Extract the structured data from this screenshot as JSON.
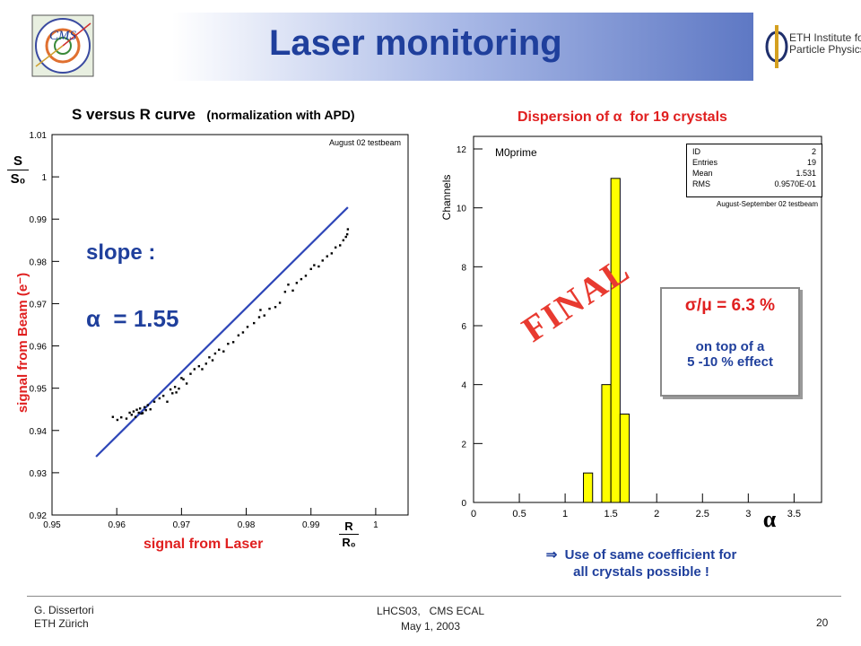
{
  "header": {
    "title": "Laser monitoring",
    "cms_logo_text": "CMS",
    "eth_logo_text_line1": "ETH Institute for",
    "eth_logo_text_line2": "Particle Physics"
  },
  "left_panel": {
    "plot_title": "S versus R curve",
    "plot_subtitle": "(normalization with APD)",
    "testbeam_note": "August 02 testbeam",
    "y_axis_num": "S",
    "y_axis_den": "S₀",
    "x_axis_num": "R",
    "x_axis_den": "R₀",
    "y_label": "signal from Beam (e⁻)",
    "x_label": "signal from Laser",
    "slope_label": "slope :",
    "alpha_label": "α  = 1.55",
    "y_ticks": [
      "1.01",
      "1",
      "0.99",
      "0.98",
      "0.97",
      "0.96",
      "0.95",
      "0.94",
      "0.93",
      "0.92"
    ],
    "x_ticks": [
      "0.95",
      "0.96",
      "0.97",
      "0.98",
      "0.99",
      "1"
    ]
  },
  "right_panel": {
    "heading": "Dispersion of α  for 19 crystals",
    "hist_name": "M0prime",
    "y_axis_label": "Channels",
    "x_axis_label": "α",
    "testbeam_note": "August-September 02 testbeam",
    "stamp": "FINAL",
    "stats": [
      {
        "key": "ID",
        "value": "2"
      },
      {
        "key": "Entries",
        "value": "19"
      },
      {
        "key": "Mean",
        "value": "1.531"
      },
      {
        "key": "RMS",
        "value": "0.9570E-01"
      }
    ],
    "y_ticks": [
      "12",
      "10",
      "8",
      "6",
      "4",
      "2",
      "0"
    ],
    "x_ticks": [
      "0",
      "0.5",
      "1",
      "1.5",
      "2",
      "2.5",
      "3",
      "3.5"
    ],
    "result_title": "σ/μ = 6.3 %",
    "result_line1": "on top of a",
    "result_line2": "5 -10 % effect",
    "conclusion_line1": "⇒  Use of same coefficient for",
    "conclusion_line2": "all crystals possible !"
  },
  "footer": {
    "author": "G. Dissertori",
    "institution": "ETH Zürich",
    "event": "LHCS03,   CMS ECAL",
    "date": "May 1, 2003",
    "page_number": "20"
  },
  "chart_data": [
    {
      "type": "scatter",
      "title": "S versus R curve",
      "subtitle": "(normalization with APD)",
      "xlabel": "R/R0",
      "ylabel": "S/S0",
      "xlim": [
        0.95,
        1.005
      ],
      "ylim": [
        0.92,
        1.01
      ],
      "x_ticks": [
        0.95,
        0.96,
        0.97,
        0.98,
        0.99,
        1
      ],
      "y_ticks": [
        0.92,
        0.93,
        0.94,
        0.95,
        0.96,
        0.97,
        0.98,
        0.99,
        1,
        1.01
      ],
      "fit_line": {
        "x": [
          0.9568,
          0.9957
        ],
        "y": [
          0.9338,
          0.9928
        ]
      },
      "series": [
        {
          "x": [
            0.9594,
            0.9601,
            0.9607,
            0.9615,
            0.962,
            0.9623,
            0.9626,
            0.9629,
            0.9631,
            0.9634,
            0.9636,
            0.9638,
            0.964,
            0.9643,
            0.9645,
            0.9648,
            0.9652,
            0.9658,
            0.9666,
            0.9672,
            0.9678,
            0.9683,
            0.9686,
            0.969,
            0.9692,
            0.9696,
            0.97,
            0.9703,
            0.9708,
            0.9714,
            0.972,
            0.9727,
            0.9732,
            0.9738,
            0.9743,
            0.9748,
            0.9752,
            0.9758,
            0.9765,
            0.9772,
            0.978,
            0.9788,
            0.9795,
            0.9802,
            0.9812,
            0.982,
            0.9822,
            0.9828,
            0.9836,
            0.9845,
            0.9852,
            0.986,
            0.9865,
            0.9872,
            0.9878,
            0.9885,
            0.9892,
            0.99,
            0.9905,
            0.9912,
            0.9918,
            0.9925,
            0.9932,
            0.9938,
            0.9945,
            0.995,
            0.9954,
            0.9956,
            0.9957
          ],
          "y": [
            0.9432,
            0.9425,
            0.9431,
            0.9428,
            0.9442,
            0.9437,
            0.9445,
            0.9432,
            0.9449,
            0.9442,
            0.9452,
            0.944,
            0.9441,
            0.9455,
            0.9448,
            0.946,
            0.945,
            0.9468,
            0.9476,
            0.9482,
            0.9468,
            0.9497,
            0.9488,
            0.9503,
            0.949,
            0.9499,
            0.9524,
            0.9521,
            0.9511,
            0.9534,
            0.9545,
            0.9552,
            0.9545,
            0.9558,
            0.9573,
            0.9566,
            0.9582,
            0.9591,
            0.9587,
            0.9605,
            0.9609,
            0.9625,
            0.9632,
            0.9645,
            0.9654,
            0.9668,
            0.9685,
            0.9672,
            0.9688,
            0.9692,
            0.9702,
            0.9728,
            0.9745,
            0.9731,
            0.9749,
            0.9758,
            0.9766,
            0.9782,
            0.9791,
            0.9788,
            0.9802,
            0.9812,
            0.9819,
            0.9833,
            0.9838,
            0.985,
            0.9858,
            0.9864,
            0.9876
          ]
        }
      ]
    },
    {
      "type": "bar",
      "title": "Dispersion of α for 19 crystals",
      "hist_name": "M0prime",
      "xlabel": "α",
      "ylabel": "Channels",
      "xlim": [
        0,
        3.8
      ],
      "ylim": [
        0,
        12
      ],
      "x_ticks": [
        0,
        0.5,
        1,
        1.5,
        2,
        2.5,
        3,
        3.5
      ],
      "y_ticks": [
        0,
        2,
        4,
        6,
        8,
        10,
        12
      ],
      "bins": [
        {
          "x0": 1.2,
          "x1": 1.3,
          "count": 1
        },
        {
          "x0": 1.4,
          "x1": 1.5,
          "count": 4
        },
        {
          "x0": 1.5,
          "x1": 1.6,
          "count": 11
        },
        {
          "x0": 1.6,
          "x1": 1.7,
          "count": 3
        }
      ],
      "stats": {
        "ID": 2,
        "Entries": 19,
        "Mean": 1.531,
        "RMS": 0.0957
      },
      "bar_color": "#ffff00"
    }
  ]
}
